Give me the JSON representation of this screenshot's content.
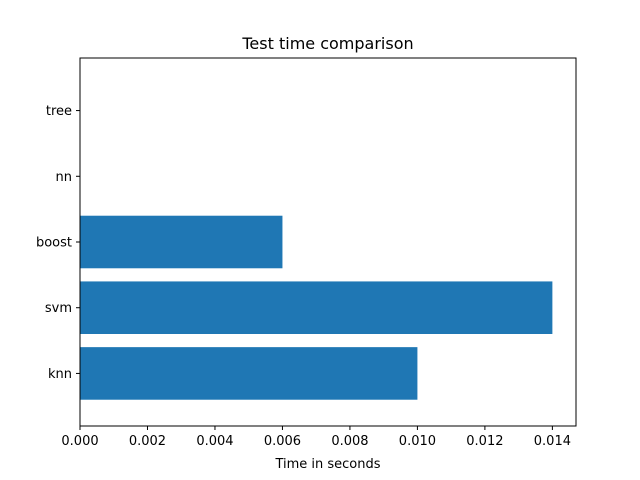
{
  "chart_data": {
    "type": "bar",
    "orientation": "horizontal",
    "title": "Test time comparison",
    "xlabel": "Time in seconds",
    "ylabel": "",
    "categories": [
      "knn",
      "svm",
      "boost",
      "nn",
      "tree"
    ],
    "values": [
      0.01,
      0.014,
      0.006,
      0.0,
      0.0
    ],
    "xlim": [
      0,
      0.0147
    ],
    "xticks": [
      0.0,
      0.002,
      0.004,
      0.006,
      0.008,
      0.01,
      0.012,
      0.014
    ],
    "xtick_labels": [
      "0.000",
      "0.002",
      "0.004",
      "0.006",
      "0.008",
      "0.010",
      "0.012",
      "0.014"
    ],
    "grid": false,
    "bar_color": "#1f77b4"
  }
}
